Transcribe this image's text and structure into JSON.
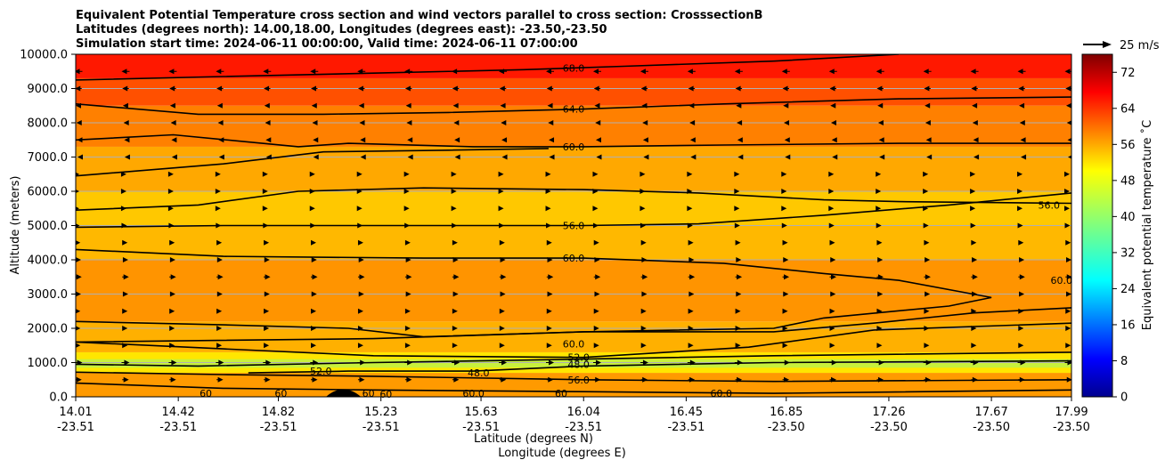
{
  "chart_data": {
    "type": "contour",
    "title_lines": [
      "Equivalent Potential Temperature cross section and wind vectors parallel to cross section: CrosssectionB",
      "Latitudes (degrees north): 14.00,18.00, Longitudes (degrees east): -23.50,-23.50",
      "Simulation start time: 2024-06-11 00:00:00, Valid time: 2024-06-11 07:00:00"
    ],
    "ylabel": "Altitude (meters)",
    "xlabel_lines": [
      "Latitude (degrees N)",
      "Longitude (degrees E)"
    ],
    "ylim": [
      0,
      10000
    ],
    "yticks": [
      "0.0",
      "1000.0",
      "2000.0",
      "3000.0",
      "4000.0",
      "5000.0",
      "6000.0",
      "7000.0",
      "8000.0",
      "9000.0",
      "10000.0"
    ],
    "ytick_values": [
      0,
      1000,
      2000,
      3000,
      4000,
      5000,
      6000,
      7000,
      8000,
      9000,
      10000
    ],
    "xlim": [
      14.01,
      17.99
    ],
    "xticks_lat": [
      "14.01",
      "14.42",
      "14.82",
      "15.23",
      "15.63",
      "16.04",
      "16.45",
      "16.85",
      "17.26",
      "17.67",
      "17.99"
    ],
    "xticks_lon": [
      "-23.51",
      "-23.51",
      "-23.51",
      "-23.51",
      "-23.51",
      "-23.51",
      "-23.51",
      "-23.50",
      "-23.50",
      "-23.50",
      "-23.50"
    ],
    "xtick_values": [
      14.01,
      14.42,
      14.82,
      15.23,
      15.63,
      16.04,
      16.45,
      16.85,
      17.26,
      17.67,
      17.99
    ],
    "grid": "horizontal",
    "colorbar": {
      "label": "Equivalent potential temperature ˚C",
      "range": [
        0,
        76
      ],
      "ticks": [
        "0",
        "8",
        "16",
        "24",
        "32",
        "40",
        "48",
        "56",
        "64",
        "72"
      ],
      "tick_values": [
        0,
        8,
        16,
        24,
        32,
        40,
        48,
        56,
        64,
        72
      ],
      "colormap": "jet"
    },
    "wind_key": "25 m/s",
    "wind_key_speed": 25,
    "layers": [
      {
        "name": "surface-layer",
        "z": [
          0,
          700
        ],
        "value": 60,
        "color": "#ff9a00"
      },
      {
        "name": "moist-low-layer",
        "z": [
          700,
          1300
        ],
        "value": 48,
        "color": "#ffe600"
      },
      {
        "name": "very-moist-core",
        "z": [
          850,
          1100
        ],
        "value": 46,
        "color": "#c8f03c"
      },
      {
        "name": "lower-mixed-layer",
        "z": [
          1300,
          2200
        ],
        "value": 58,
        "color": "#ffb000"
      },
      {
        "name": "saharan-air-layer",
        "z": [
          2200,
          4000
        ],
        "value": 61,
        "color": "#ff9400"
      },
      {
        "name": "mid-layer",
        "z": [
          4000,
          5000
        ],
        "value": 57,
        "color": "#ffb800"
      },
      {
        "name": "min-theta-e-layer",
        "z": [
          5000,
          6000
        ],
        "value": 54,
        "color": "#ffc800"
      },
      {
        "name": "upper-mid-layer",
        "z": [
          6000,
          7300
        ],
        "value": 58,
        "color": "#ffa800"
      },
      {
        "name": "upper-layer",
        "z": [
          7300,
          8500
        ],
        "value": 62,
        "color": "#ff8000"
      },
      {
        "name": "top-layer",
        "z": [
          8500,
          9300
        ],
        "value": 66,
        "color": "#ff5000"
      },
      {
        "name": "tropopause-layer",
        "z": [
          9300,
          10000
        ],
        "value": 70,
        "color": "#ff1800"
      }
    ],
    "contours": [
      {
        "level": 68,
        "label": "68.0",
        "points": [
          [
            14.01,
            9250
          ],
          [
            14.6,
            9350
          ],
          [
            15.2,
            9450
          ],
          [
            15.8,
            9550
          ],
          [
            16.2,
            9650
          ],
          [
            16.8,
            9800
          ],
          [
            17.3,
            10000
          ]
        ],
        "label_at": [
          16.0,
          9600
        ]
      },
      {
        "label": "64.0",
        "level": 64,
        "points": [
          [
            14.01,
            8550
          ],
          [
            14.5,
            8250
          ],
          [
            15.0,
            8250
          ],
          [
            15.5,
            8300
          ],
          [
            16.04,
            8400
          ],
          [
            16.6,
            8550
          ],
          [
            17.3,
            8700
          ],
          [
            17.99,
            8750
          ]
        ],
        "label_at": [
          16.0,
          8400
        ]
      },
      {
        "label": "60.0",
        "level": 60,
        "points": [
          [
            14.01,
            7500
          ],
          [
            14.4,
            7650
          ],
          [
            14.9,
            7300
          ],
          [
            15.1,
            7400
          ],
          [
            15.6,
            7300
          ],
          [
            16.04,
            7300
          ],
          [
            16.6,
            7350
          ],
          [
            17.3,
            7400
          ],
          [
            17.99,
            7400
          ]
        ],
        "label_at": [
          16.0,
          7300
        ]
      },
      {
        "label": "",
        "level": 60,
        "points": [
          [
            14.01,
            6450
          ],
          [
            14.6,
            6800
          ],
          [
            15.0,
            7150
          ],
          [
            15.5,
            7200
          ],
          [
            15.9,
            7250
          ]
        ],
        "label_at": null
      },
      {
        "label": "",
        "level": 56,
        "points": [
          [
            14.01,
            5450
          ],
          [
            14.5,
            5600
          ],
          [
            14.9,
            6000
          ],
          [
            15.4,
            6100
          ],
          [
            16.04,
            6050
          ],
          [
            16.5,
            5950
          ],
          [
            17.0,
            5750
          ],
          [
            17.3,
            5700
          ],
          [
            17.99,
            5650
          ]
        ],
        "label_at": null
      },
      {
        "label": "56.0",
        "level": 56,
        "points": [
          [
            14.01,
            4950
          ],
          [
            14.6,
            5000
          ],
          [
            15.4,
            5000
          ],
          [
            16.04,
            5000
          ],
          [
            16.5,
            5050
          ],
          [
            17.0,
            5300
          ],
          [
            17.5,
            5600
          ],
          [
            17.99,
            5950
          ]
        ],
        "label_at": [
          16.0,
          5000
        ]
      },
      {
        "label": "60.0",
        "level": 60,
        "points": [
          [
            14.01,
            4300
          ],
          [
            14.6,
            4100
          ],
          [
            15.4,
            4050
          ],
          [
            16.04,
            4050
          ],
          [
            16.6,
            3900
          ],
          [
            17.0,
            3600
          ],
          [
            17.3,
            3400
          ],
          [
            17.67,
            2900
          ],
          [
            17.5,
            2650
          ],
          [
            17.0,
            2300
          ],
          [
            16.8,
            2000
          ],
          [
            16.04,
            1900
          ],
          [
            15.2,
            1700
          ],
          [
            14.01,
            1600
          ]
        ],
        "label_at": [
          16.0,
          4050
        ]
      },
      {
        "label": "",
        "level": 60,
        "points": [
          [
            14.01,
            2200
          ],
          [
            14.6,
            2100
          ],
          [
            15.1,
            2000
          ],
          [
            15.4,
            1750
          ],
          [
            16.04,
            1900
          ],
          [
            16.8,
            1900
          ],
          [
            17.2,
            2150
          ],
          [
            17.6,
            2450
          ],
          [
            17.99,
            2600
          ]
        ],
        "label_at": null
      },
      {
        "label": "60.0",
        "level": 60,
        "points": [
          [
            14.01,
            1600
          ],
          [
            14.6,
            1400
          ],
          [
            15.2,
            1200
          ],
          [
            16.04,
            1150
          ],
          [
            16.7,
            1450
          ],
          [
            17.2,
            1950
          ],
          [
            17.99,
            2150
          ]
        ],
        "label_at": [
          16.0,
          1550
        ]
      },
      {
        "label": "52.0",
        "level": 52,
        "points": [
          [
            14.01,
            950
          ],
          [
            14.5,
            900
          ],
          [
            15.2,
            1000
          ],
          [
            16.04,
            1100
          ],
          [
            16.8,
            1200
          ],
          [
            17.99,
            1300
          ]
        ],
        "label_at": [
          16.02,
          1150
        ]
      },
      {
        "label": "48.0",
        "level": 48,
        "points": [
          [
            14.7,
            700
          ],
          [
            15.1,
            750
          ],
          [
            15.6,
            750
          ],
          [
            16.04,
            900
          ],
          [
            16.8,
            1000
          ],
          [
            17.99,
            1050
          ]
        ],
        "label_at": [
          16.02,
          950
        ]
      },
      {
        "label": "56.0",
        "level": 56,
        "points": [
          [
            14.01,
            720
          ],
          [
            14.6,
            650
          ],
          [
            15.2,
            600
          ],
          [
            16.04,
            500
          ],
          [
            16.8,
            450
          ],
          [
            17.99,
            500
          ]
        ],
        "label_at": [
          16.02,
          500
        ]
      },
      {
        "label": "60",
        "level": 60,
        "points": [
          [
            14.01,
            400
          ],
          [
            14.6,
            250
          ],
          [
            15.2,
            200
          ],
          [
            16.04,
            150
          ],
          [
            16.8,
            100
          ],
          [
            17.99,
            200
          ]
        ],
        "label_at": null
      }
    ],
    "side_labels": [
      {
        "text": "56.0",
        "at": [
          17.9,
          5600
        ]
      },
      {
        "text": "60.0",
        "at": [
          17.95,
          3400
        ]
      },
      {
        "text": "48.0",
        "at": [
          15.62,
          700
        ]
      },
      {
        "text": "60",
        "at": [
          14.53,
          100
        ]
      },
      {
        "text": "60",
        "at": [
          14.83,
          100
        ]
      },
      {
        "text": "60",
        "at": [
          15.18,
          100
        ]
      },
      {
        "text": "60",
        "at": [
          15.25,
          80
        ]
      },
      {
        "text": "60.0",
        "at": [
          15.6,
          100
        ]
      },
      {
        "text": "60",
        "at": [
          15.95,
          100
        ]
      },
      {
        "text": "60.0",
        "at": [
          16.59,
          100
        ]
      },
      {
        "text": "52.0",
        "at": [
          14.99,
          750
        ]
      }
    ],
    "terrain": {
      "center": 15.08,
      "half_width": 0.07,
      "height": 220
    },
    "wind_levels": [
      {
        "z": 9500,
        "speed": 6,
        "dir": -1
      },
      {
        "z": 9000,
        "speed": 5,
        "dir": -1
      },
      {
        "z": 8500,
        "speed": 4,
        "dir": -1
      },
      {
        "z": 8000,
        "speed": 3,
        "dir": -1
      },
      {
        "z": 7500,
        "speed": 2,
        "dir": -1
      },
      {
        "z": 7000,
        "speed": 1,
        "dir": -1
      },
      {
        "z": 6500,
        "speed": 1,
        "dir": 1
      },
      {
        "z": 6000,
        "speed": 1,
        "dir": 1
      },
      {
        "z": 5500,
        "speed": 1,
        "dir": 1
      },
      {
        "z": 5000,
        "speed": 2,
        "dir": 1
      },
      {
        "z": 4500,
        "speed": 3,
        "dir": 1
      },
      {
        "z": 4000,
        "speed": 4,
        "dir": 1
      },
      {
        "z": 3500,
        "speed": 5,
        "dir": 1
      },
      {
        "z": 3000,
        "speed": 4,
        "dir": 1
      },
      {
        "z": 2500,
        "speed": 3,
        "dir": 1
      },
      {
        "z": 2000,
        "speed": 3,
        "dir": 1
      },
      {
        "z": 1500,
        "speed": 3,
        "dir": 1
      },
      {
        "z": 1000,
        "speed": 6,
        "dir": 1
      },
      {
        "z": 500,
        "speed": 5,
        "dir": 1
      }
    ]
  }
}
